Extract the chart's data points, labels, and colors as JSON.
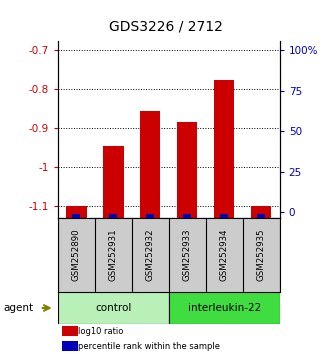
{
  "title": "GDS3226 / 2712",
  "samples": [
    "GSM252890",
    "GSM252931",
    "GSM252932",
    "GSM252933",
    "GSM252934",
    "GSM252935"
  ],
  "log10_ratio": [
    -1.1,
    -0.945,
    -0.855,
    -0.885,
    -0.775,
    -1.1
  ],
  "percentile_rank_pct": [
    2,
    2,
    2,
    2,
    2,
    2
  ],
  "groups": [
    {
      "label": "control",
      "indices": [
        0,
        1,
        2
      ],
      "color": "#b8f0b8"
    },
    {
      "label": "interleukin-22",
      "indices": [
        3,
        4,
        5
      ],
      "color": "#40dd40"
    }
  ],
  "ylim_left": [
    -1.13,
    -0.675
  ],
  "ylim_right": [
    -3.5,
    106
  ],
  "yticks_left": [
    -1.1,
    -1.0,
    -0.9,
    -0.8,
    -0.7
  ],
  "ytick_labels_left": [
    "-1.1",
    "-1",
    "-0.9",
    "-0.8",
    "-0.7"
  ],
  "yticks_right": [
    0,
    25,
    50,
    75,
    100
  ],
  "ytick_labels_right": [
    "0",
    "25",
    "50",
    "75",
    "100%"
  ],
  "bar_color_red": "#cc0000",
  "bar_color_blue": "#0000bb",
  "bar_width": 0.55,
  "blue_bar_width": 0.22,
  "bg_color": "#ffffff",
  "sample_bg_color": "#cccccc",
  "legend_red_label": "log10 ratio",
  "legend_blue_label": "percentile rank within the sample"
}
